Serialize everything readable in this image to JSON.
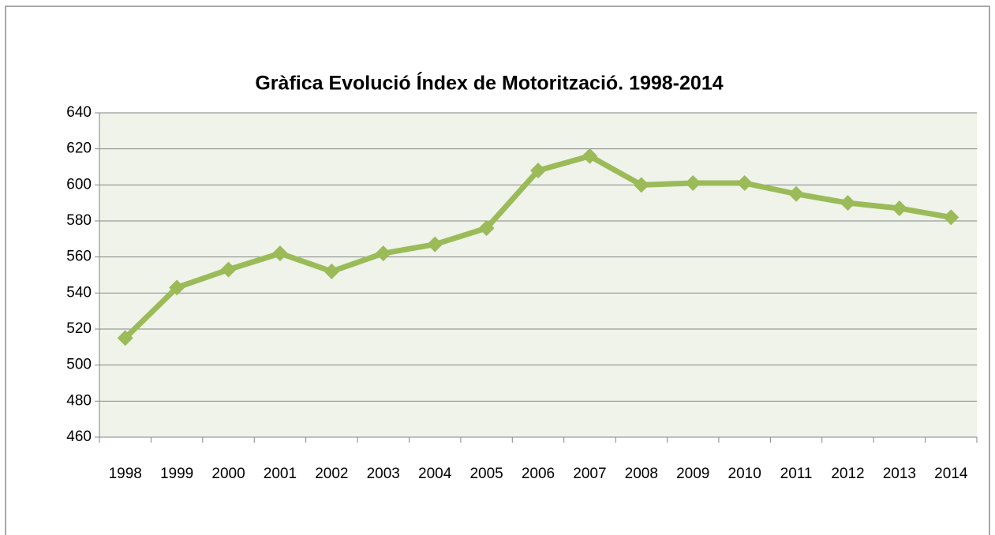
{
  "chart_data": {
    "type": "line",
    "title": "Gràfica Evolució Índex de Motorització. 1998-2014",
    "categories": [
      "1998",
      "1999",
      "2000",
      "2001",
      "2002",
      "2003",
      "2004",
      "2005",
      "2006",
      "2007",
      "2008",
      "2009",
      "2010",
      "2011",
      "2012",
      "2013",
      "2014"
    ],
    "series": [
      {
        "name": "Índex de Motorització",
        "color": "#9bbb59",
        "values": [
          515,
          543,
          553,
          562,
          552,
          562,
          567,
          576,
          608,
          616,
          600,
          601,
          601,
          595,
          590,
          587,
          582
        ]
      }
    ],
    "ylim": [
      460,
      640
    ],
    "yticks": [
      460,
      480,
      500,
      520,
      540,
      560,
      580,
      600,
      620,
      640
    ],
    "grid": true
  }
}
